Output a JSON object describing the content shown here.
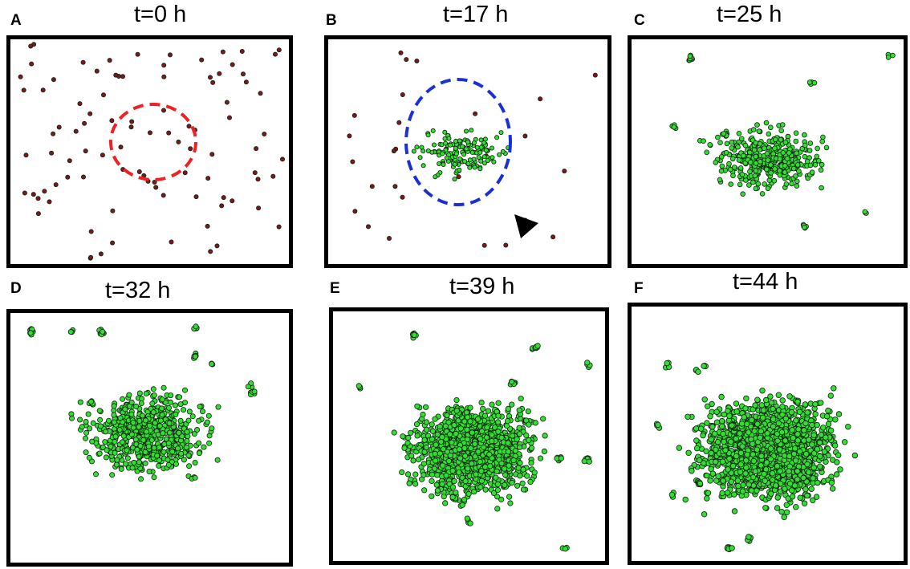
{
  "panels": [
    {
      "letter": "A",
      "title": "t=0 h"
    },
    {
      "letter": "B",
      "title": "t=17 h"
    },
    {
      "letter": "C",
      "title": "t=25 h"
    },
    {
      "letter": "D",
      "title": "t=32 h"
    },
    {
      "letter": "E",
      "title": "t=39 h"
    },
    {
      "letter": "F",
      "title": "t=44 h"
    }
  ],
  "colors": {
    "cell_red": "#7a1a1a",
    "cell_green": "#33dd33",
    "cell_stroke": "#102010",
    "circle_red": "#ee2222",
    "circle_blue": "#1b2fd6",
    "arrowhead": "#000000"
  }
}
